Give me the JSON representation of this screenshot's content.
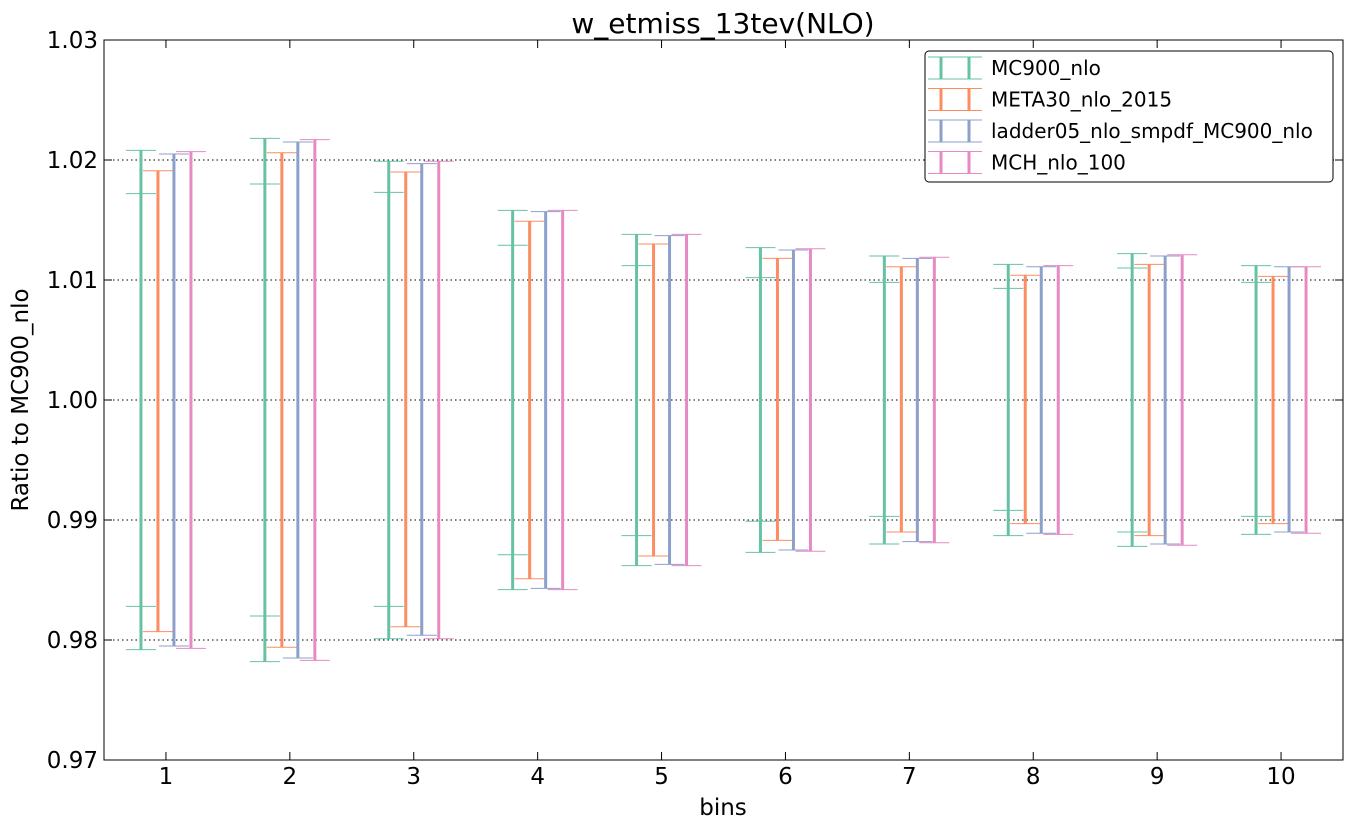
{
  "chart_data": {
    "type": "errorbar",
    "title": "w_etmiss_13tev(NLO)",
    "xlabel": "bins",
    "ylabel": "Ratio to MC900_nlo",
    "xlim": [
      0.5,
      10.5
    ],
    "ylim": [
      0.97,
      1.03
    ],
    "yticks": [
      "0.97",
      "0.98",
      "0.99",
      "1.00",
      "1.01",
      "1.02",
      "1.03"
    ],
    "ytick_values": [
      0.97,
      0.98,
      0.99,
      1.0,
      1.01,
      1.02,
      1.03
    ],
    "categories": [
      "1",
      "2",
      "3",
      "4",
      "5",
      "6",
      "7",
      "8",
      "9",
      "10"
    ],
    "grid": "dotted horizontal at y ticks",
    "legend_position": "top-right",
    "series": [
      {
        "name": "MC900_nlo",
        "color": "#66c2a5",
        "outer_low": [
          0.9792,
          0.9782,
          0.9801,
          0.9842,
          0.9862,
          0.9873,
          0.988,
          0.9887,
          0.9878,
          0.9888
        ],
        "outer_high": [
          1.0208,
          1.0218,
          1.0199,
          1.0158,
          1.0138,
          1.0127,
          1.012,
          1.0113,
          1.0122,
          1.0112
        ],
        "inner_low": [
          0.9828,
          0.982,
          0.9828,
          0.9871,
          0.9887,
          0.9899,
          0.9903,
          0.9908,
          0.989,
          0.9903
        ],
        "inner_high": [
          1.0172,
          1.018,
          1.0173,
          1.0129,
          1.0112,
          1.0102,
          1.0098,
          1.0093,
          1.011,
          1.0098
        ]
      },
      {
        "name": "META30_nlo_2015",
        "color": "#fc8d62",
        "low": [
          0.9807,
          0.9794,
          0.9811,
          0.9851,
          0.987,
          0.9883,
          0.989,
          0.9897,
          0.9887,
          0.9897
        ],
        "high": [
          1.0191,
          1.0206,
          1.019,
          1.0149,
          1.013,
          1.0118,
          1.0111,
          1.0104,
          1.0113,
          1.0103
        ]
      },
      {
        "name": "ladder05_nlo_smpdf_MC900_nlo",
        "color": "#8da0cb",
        "low": [
          0.9795,
          0.9785,
          0.9804,
          0.9843,
          0.9863,
          0.9875,
          0.9882,
          0.9889,
          0.988,
          0.989
        ],
        "high": [
          1.0205,
          1.0215,
          1.0197,
          1.0157,
          1.0137,
          1.0125,
          1.0118,
          1.0111,
          1.012,
          1.0111
        ]
      },
      {
        "name": "MCH_nlo_100",
        "color": "#e78ac3",
        "low": [
          0.9793,
          0.9783,
          0.9801,
          0.9842,
          0.9862,
          0.9874,
          0.9881,
          0.9888,
          0.9879,
          0.9889
        ],
        "high": [
          1.0207,
          1.0217,
          1.0199,
          1.0158,
          1.0138,
          1.0126,
          1.0119,
          1.0112,
          1.0121,
          1.0111
        ]
      }
    ]
  }
}
